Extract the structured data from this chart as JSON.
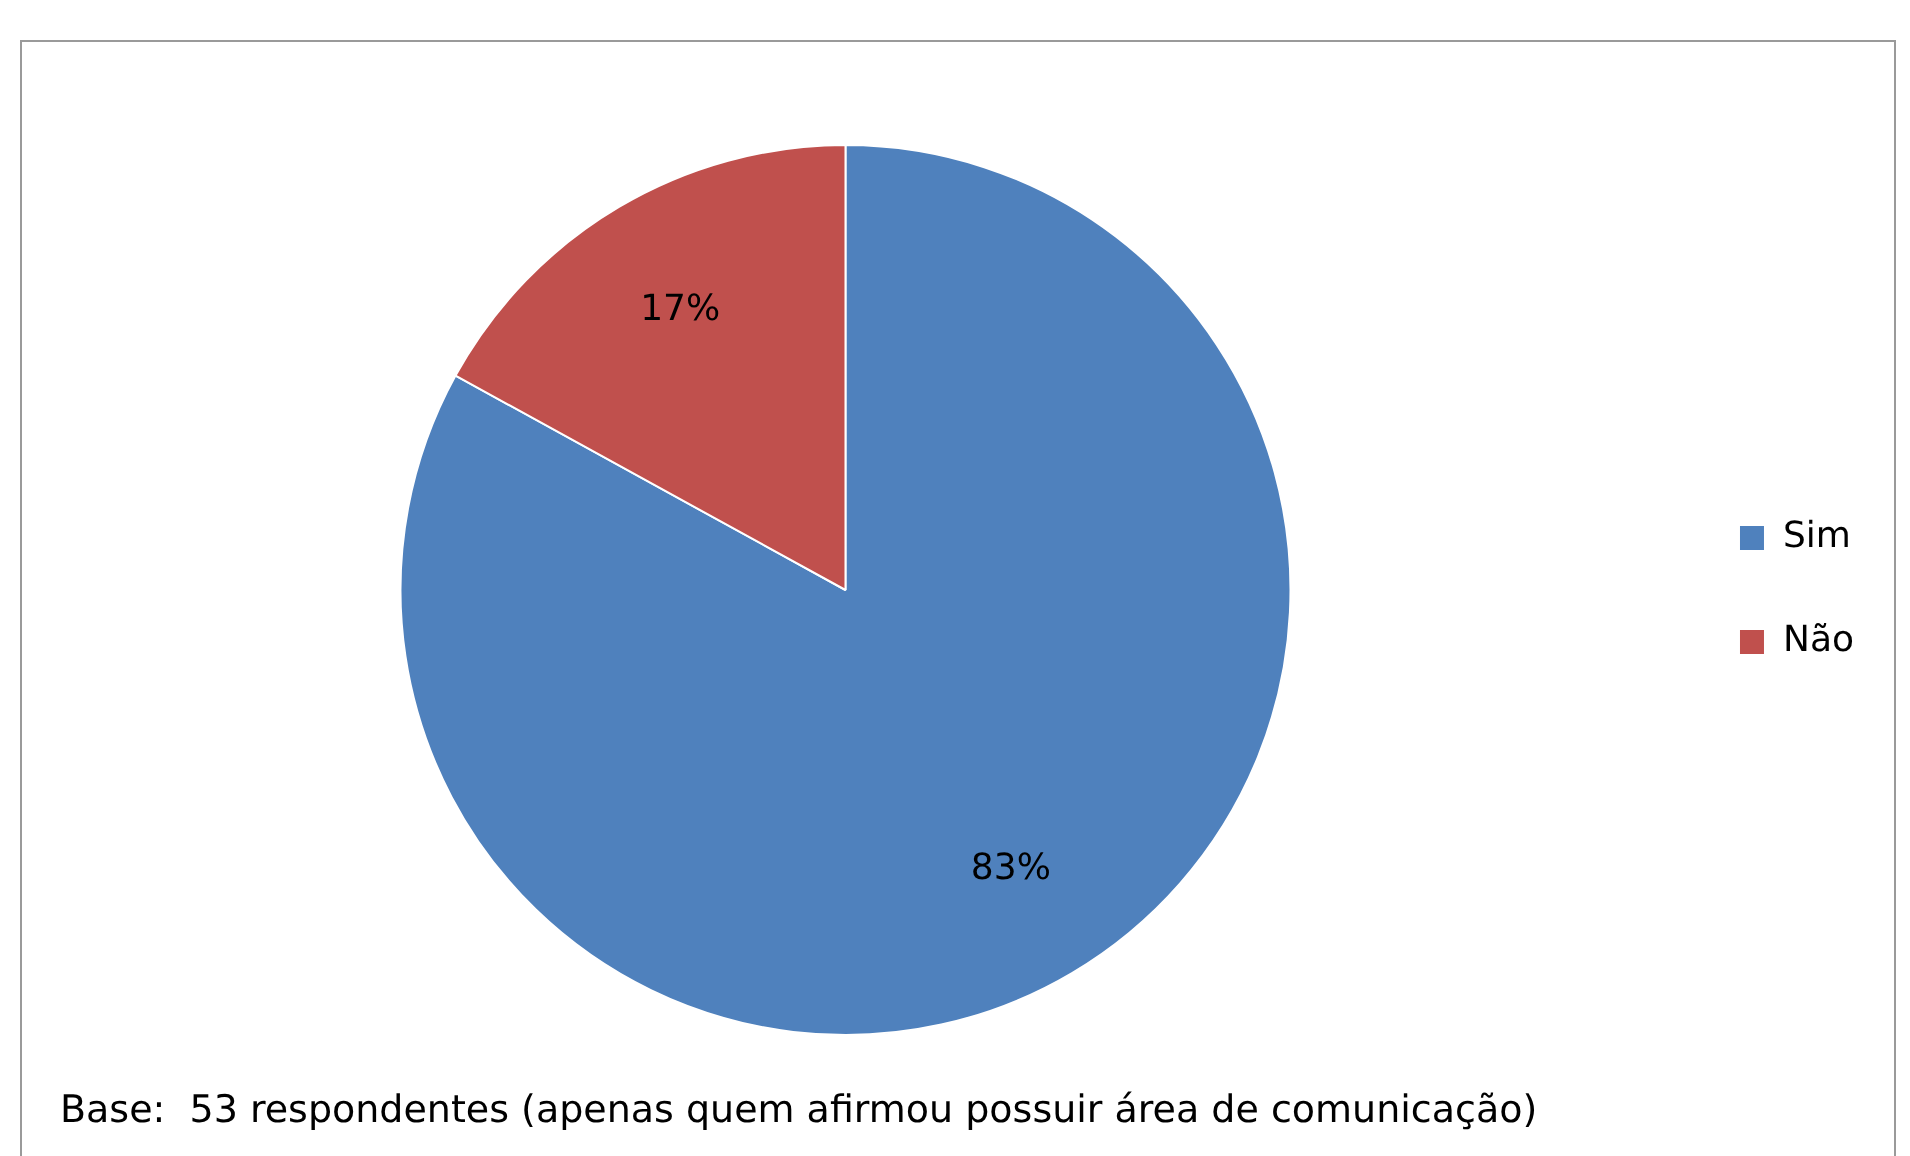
{
  "chart_data": {
    "type": "pie",
    "categories": [
      "Sim",
      "Não"
    ],
    "values": [
      83,
      17
    ],
    "colors": [
      "#4f81bd",
      "#c0504d"
    ],
    "value_labels": [
      "83%",
      "17%"
    ],
    "legend": "right",
    "annotations": [
      "Base:  53 respondentes (apenas quem afirmou possuir área de comunicação)"
    ]
  }
}
